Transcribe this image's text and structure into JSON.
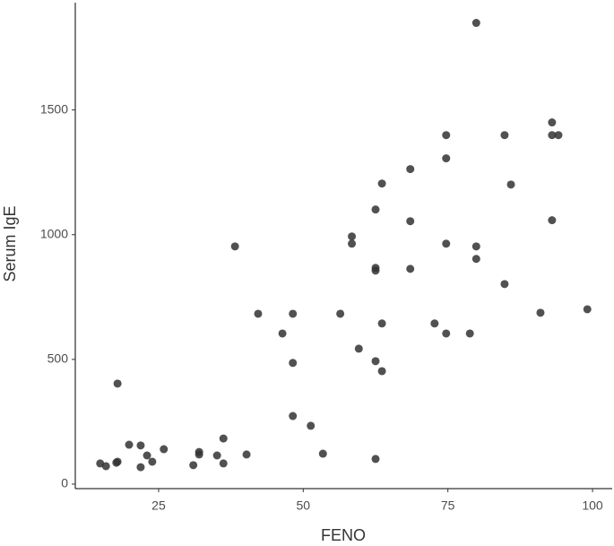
{
  "chart_data": {
    "type": "scatter",
    "x_label": "FENO",
    "y_label": "Serum IgE",
    "color": "#333333",
    "x": [
      14.9,
      15.9,
      17.7,
      17.9,
      17.9,
      19.9,
      21.9,
      21.9,
      23,
      23.9,
      25.9,
      31,
      32,
      32,
      35.1,
      36.2,
      36.2,
      38.2,
      40.2,
      42.2,
      46.4,
      48.2,
      48.2,
      48.2,
      51.3,
      53.4,
      56.4,
      58.4,
      58.4,
      59.6,
      62.5,
      62.5,
      62.5,
      62.5,
      62.5,
      63.6,
      63.6,
      63.6,
      68.5,
      68.5,
      68.5,
      72.7,
      74.7,
      74.7,
      74.7,
      74.7,
      78.8,
      79.9,
      79.9,
      79.9,
      84.8,
      84.8,
      85.9,
      91,
      93,
      93,
      93,
      94.1,
      99.1
    ],
    "values": [
      83,
      72,
      86,
      90,
      403,
      158,
      155,
      68,
      115,
      90,
      140,
      76,
      129,
      119,
      115,
      183,
      83,
      953,
      119,
      683,
      604,
      683,
      486,
      273,
      234,
      122,
      683,
      993,
      964,
      543,
      101,
      493,
      867,
      856,
      1101,
      1205,
      644,
      453,
      1263,
      1054,
      863,
      644,
      1399,
      1306,
      964,
      604,
      604,
      1849,
      953,
      903,
      1399,
      802,
      1201,
      687,
      1450,
      1399,
      1058,
      1399,
      701
    ],
    "xlim": [
      10.6,
      103.4
    ],
    "ylim": [
      -18,
      1930
    ],
    "xticks": [
      25,
      50,
      75,
      100
    ],
    "yticks": [
      0,
      500,
      1000,
      1500
    ]
  }
}
